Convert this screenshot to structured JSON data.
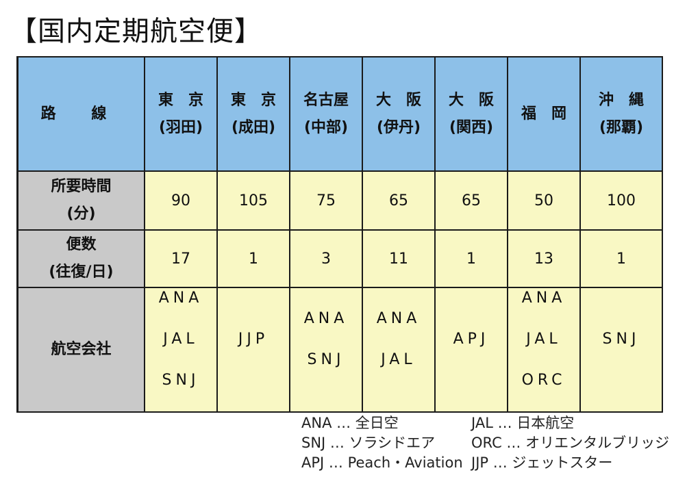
{
  "title": "【国内定期航空便】",
  "table": {
    "route_header": "路 線",
    "destinations": [
      {
        "line1": "東　京",
        "line2": "(羽田)"
      },
      {
        "line1": "東　京",
        "line2": "(成田)"
      },
      {
        "line1": "名古屋",
        "line2": "(中部)"
      },
      {
        "line1": "大　阪",
        "line2": "(伊丹)"
      },
      {
        "line1": "大　阪",
        "line2": "(関西)"
      },
      {
        "line1": "福　岡",
        "line2": ""
      },
      {
        "line1": "沖　縄",
        "line2": "(那覇)"
      }
    ],
    "time_label": {
      "line1": "所要時間",
      "line2": "(分)"
    },
    "times": [
      "90",
      "105",
      "75",
      "65",
      "65",
      "50",
      "100"
    ],
    "freq_label": {
      "line1": "便数",
      "line2": "(往復/日)"
    },
    "frequencies": [
      "17",
      "1",
      "3",
      "11",
      "1",
      "13",
      "1"
    ],
    "airline_label": "航空会社",
    "airlines": [
      [
        "ANA",
        "JAL",
        "SNJ"
      ],
      [
        "JJP"
      ],
      [
        "ANA",
        "SNJ"
      ],
      [
        "ANA",
        "JAL"
      ],
      [
        "APJ"
      ],
      [
        "ANA",
        "JAL",
        "ORC"
      ],
      [
        "SNJ"
      ]
    ]
  },
  "legend": {
    "left": [
      "ANA … 全日空",
      "SNJ … ソラシドエア",
      "APJ … Peach・Aviation"
    ],
    "right": [
      "JAL … 日本航空",
      "ORC … オリエンタルブリッジ",
      "JJP … ジェットスター"
    ]
  },
  "colors": {
    "header_bg": "#8dc0e8",
    "label_bg": "#c9c9c9",
    "data_bg": "#f9f8c4",
    "border": "#1a1a1a"
  }
}
